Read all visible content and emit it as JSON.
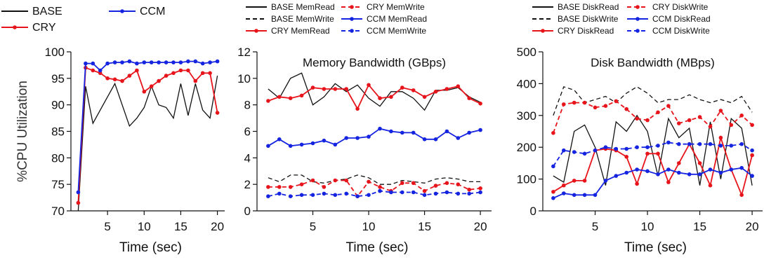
{
  "colors": {
    "base": "#111111",
    "cry": "#e8141b",
    "ccm": "#1524e0"
  },
  "chart_data": [
    {
      "type": "line",
      "title": "",
      "xlabel": "Time (sec)",
      "ylabel": "%CPU Utilization",
      "xlim": [
        0,
        21
      ],
      "ylim": [
        70,
        100
      ],
      "xticks": [
        5,
        10,
        15,
        20
      ],
      "yticks": [
        70,
        75,
        80,
        85,
        90,
        95,
        100
      ],
      "x": [
        1,
        2,
        3,
        4,
        5,
        6,
        7,
        8,
        9,
        10,
        11,
        12,
        13,
        14,
        15,
        16,
        17,
        18,
        19,
        20
      ],
      "legend": {
        "placement": "top",
        "entries": [
          "BASE",
          "CCM",
          "CRY"
        ]
      },
      "series": [
        {
          "name": "BASE",
          "color": "base",
          "dash": "solid",
          "marker": false,
          "values": [
            70,
            93.5,
            86.5,
            89,
            91.5,
            94,
            90,
            86,
            87.5,
            89.5,
            93.5,
            90,
            89.5,
            87.5,
            94,
            88,
            94,
            89,
            87.5,
            95.5
          ]
        },
        {
          "name": "CRY",
          "color": "cry",
          "dash": "solid",
          "marker": true,
          "values": [
            71.5,
            97,
            96.5,
            96,
            95,
            94.8,
            94.5,
            95.5,
            96.5,
            92.5,
            93.5,
            94.5,
            95.5,
            96,
            96.5,
            96.5,
            94.5,
            96,
            96,
            88.5
          ]
        },
        {
          "name": "CCM",
          "color": "ccm",
          "dash": "solid",
          "marker": true,
          "values": [
            73.5,
            97.8,
            97.8,
            96.5,
            97.8,
            98,
            98,
            98.2,
            97.8,
            98,
            98,
            98,
            98,
            98,
            98,
            98.2,
            98.2,
            97.8,
            98,
            98.2
          ]
        }
      ]
    },
    {
      "type": "line",
      "title": "Memory Bandwidth (GBps)",
      "xlabel": "Time (sec)",
      "ylabel": "",
      "xlim": [
        0,
        21
      ],
      "ylim": [
        0,
        12
      ],
      "xticks": [
        5,
        10,
        15,
        20
      ],
      "yticks": [
        0,
        2,
        4,
        6,
        8,
        10,
        12
      ],
      "x": [
        1,
        2,
        3,
        4,
        5,
        6,
        7,
        8,
        9,
        10,
        11,
        12,
        13,
        14,
        15,
        16,
        17,
        18,
        19,
        20
      ],
      "legend": {
        "placement": "top",
        "entries": [
          "BASE MemRead",
          "CRY MemWrite",
          "BASE MemWrite",
          "CCM MemRead",
          "CRY MemRead",
          "CCM MemWrite"
        ]
      },
      "series": [
        {
          "name": "BASE MemRead",
          "color": "base",
          "dash": "solid",
          "marker": false,
          "values": [
            9.2,
            8.5,
            10,
            10.4,
            8,
            8.6,
            9.6,
            9,
            9.5,
            8.5,
            7.9,
            9,
            9,
            8.5,
            7.6,
            9.1,
            9.1,
            9.3,
            8.6,
            8.2
          ]
        },
        {
          "name": "BASE MemWrite",
          "color": "base",
          "dash": "dashed",
          "marker": false,
          "values": [
            2.5,
            2.2,
            2.7,
            2.7,
            2.2,
            2.1,
            2.3,
            2.4,
            2.7,
            2.5,
            2.0,
            2.0,
            2.3,
            2.2,
            2.1,
            2.4,
            2.5,
            2.4,
            2.2,
            2.2
          ]
        },
        {
          "name": "CRY MemRead",
          "color": "cry",
          "dash": "solid",
          "marker": true,
          "values": [
            8.3,
            8.6,
            8.5,
            8.7,
            9.3,
            9.2,
            9.2,
            9.2,
            7.7,
            9.5,
            8.5,
            8.6,
            9.3,
            9.1,
            8.6,
            9.0,
            9.2,
            9.4,
            8.5,
            8.1
          ]
        },
        {
          "name": "CRY MemWrite",
          "color": "cry",
          "dash": "dashed",
          "marker": true,
          "values": [
            1.8,
            1.8,
            1.8,
            2.0,
            2.3,
            1.8,
            2.3,
            2.3,
            1.1,
            2.2,
            1.8,
            1.5,
            2.1,
            2.1,
            1.5,
            1.9,
            2.1,
            2.0,
            1.6,
            1.7
          ]
        },
        {
          "name": "CCM MemRead",
          "color": "ccm",
          "dash": "solid",
          "marker": true,
          "values": [
            4.9,
            5.4,
            4.9,
            5.0,
            5.1,
            5.3,
            5.0,
            5.5,
            5.5,
            5.6,
            6.2,
            6.0,
            5.9,
            5.9,
            5.4,
            5.4,
            6.0,
            5.5,
            5.9,
            6.1
          ]
        },
        {
          "name": "CCM MemWrite",
          "color": "ccm",
          "dash": "dashed",
          "marker": true,
          "values": [
            1.1,
            1.3,
            1.1,
            1.2,
            1.2,
            1.3,
            1.2,
            1.3,
            1.1,
            1.2,
            1.5,
            1.4,
            1.4,
            1.4,
            1.2,
            1.3,
            1.4,
            1.3,
            1.3,
            1.4
          ]
        }
      ]
    },
    {
      "type": "line",
      "title": "Disk Bandwidth (MBps)",
      "xlabel": "Time (sec)",
      "ylabel": "",
      "xlim": [
        0,
        21
      ],
      "ylim": [
        0,
        500
      ],
      "xticks": [
        5,
        10,
        15,
        20
      ],
      "yticks": [
        0,
        100,
        200,
        300,
        400,
        500
      ],
      "x": [
        1,
        2,
        3,
        4,
        5,
        6,
        7,
        8,
        9,
        10,
        11,
        12,
        13,
        14,
        15,
        16,
        17,
        18,
        19,
        20
      ],
      "legend": {
        "placement": "top",
        "entries": [
          "BASE DiskRead",
          "CRY DiskWrite",
          "BASE DiskWrite",
          "CCM DiskRead",
          "CRY DiskRead",
          "CCM DiskWrite"
        ]
      },
      "series": [
        {
          "name": "BASE DiskRead",
          "color": "base",
          "dash": "solid",
          "marker": false,
          "values": [
            110,
            90,
            250,
            270,
            200,
            80,
            280,
            250,
            300,
            250,
            110,
            290,
            230,
            260,
            80,
            280,
            100,
            290,
            260,
            80
          ]
        },
        {
          "name": "BASE DiskWrite",
          "color": "base",
          "dash": "dashed",
          "marker": false,
          "values": [
            300,
            390,
            380,
            340,
            350,
            360,
            340,
            370,
            390,
            370,
            340,
            350,
            350,
            365,
            350,
            340,
            350,
            340,
            360,
            310
          ]
        },
        {
          "name": "CRY DiskRead",
          "color": "cry",
          "dash": "solid",
          "marker": true,
          "values": [
            60,
            80,
            95,
            95,
            190,
            195,
            190,
            170,
            85,
            180,
            180,
            90,
            150,
            210,
            150,
            80,
            230,
            130,
            50,
            175
          ]
        },
        {
          "name": "CRY DiskWrite",
          "color": "cry",
          "dash": "dashed",
          "marker": true,
          "values": [
            245,
            335,
            340,
            340,
            325,
            330,
            345,
            320,
            290,
            285,
            310,
            330,
            275,
            285,
            295,
            265,
            315,
            270,
            300,
            270
          ]
        },
        {
          "name": "CCM DiskRead",
          "color": "ccm",
          "dash": "solid",
          "marker": true,
          "values": [
            40,
            55,
            50,
            50,
            50,
            95,
            110,
            120,
            130,
            125,
            115,
            130,
            120,
            115,
            115,
            130,
            120,
            130,
            135,
            110
          ]
        },
        {
          "name": "CCM DiskWrite",
          "color": "ccm",
          "dash": "dashed",
          "marker": true,
          "values": [
            140,
            190,
            185,
            180,
            190,
            200,
            195,
            195,
            200,
            200,
            205,
            215,
            210,
            210,
            210,
            210,
            205,
            205,
            210,
            190
          ]
        }
      ]
    }
  ]
}
